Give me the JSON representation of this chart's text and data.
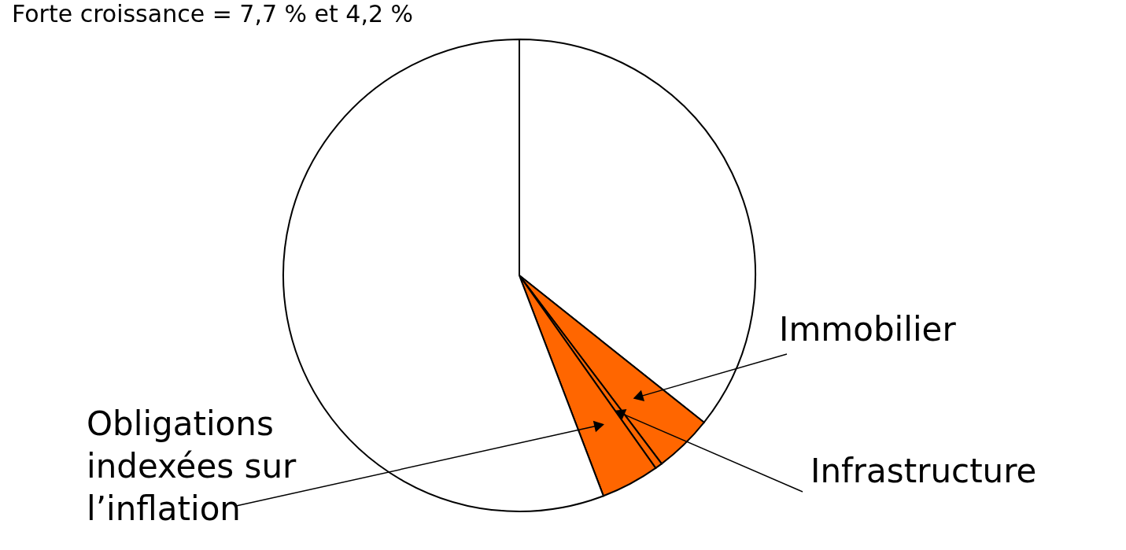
{
  "chart_data": {
    "type": "pie",
    "title": "Forte croissance = 7,7 % et 4,2 %",
    "categories": [
      null,
      "Immobilier",
      "Infrastructure",
      "Obligations indexées sur l’inflation",
      null
    ],
    "values": [
      35.7,
      4.0,
      0.5,
      4.0,
      55.8
    ],
    "colors": [
      "#ffffff",
      "#ff6600",
      "#ff6600",
      "#ff6600",
      "#ffffff"
    ]
  }
}
